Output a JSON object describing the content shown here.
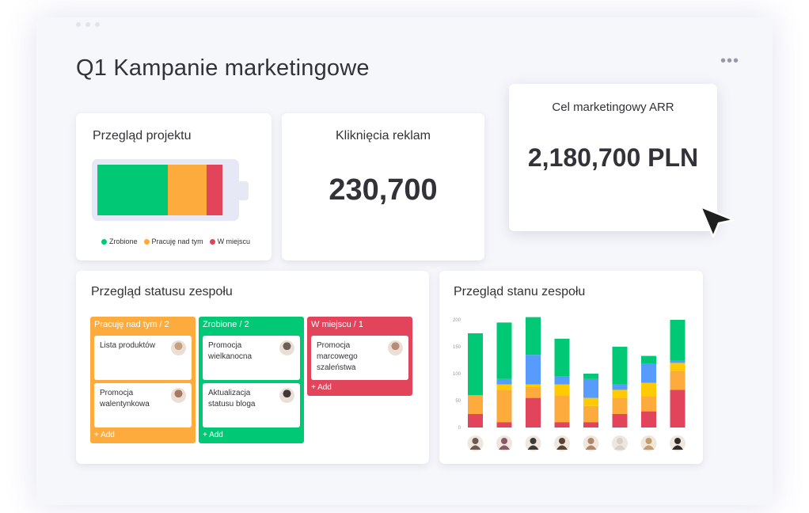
{
  "page": {
    "title": "Q1 Kampanie marketingowe",
    "more_label": "•••"
  },
  "project_overview": {
    "title": "Przegląd projektu",
    "segments": [
      {
        "label": "Zrobione",
        "share": 0.52,
        "color": "#00c875"
      },
      {
        "label": "Pracuję nad tym",
        "share": 0.28,
        "color": "#fdab3d"
      },
      {
        "label": "W miejscu",
        "share": 0.12,
        "color": "#e2445c"
      }
    ]
  },
  "ad_clicks": {
    "title": "Kliknięcia reklam",
    "value": "230,700"
  },
  "arr_goal": {
    "title": "Cel marketingowy ARR",
    "value": "2,180,700 PLN"
  },
  "team_status": {
    "title": "Przegląd statusu zespołu",
    "columns": [
      {
        "header": "Pracuję nad tym / 2",
        "color": "#fdab3d",
        "add_label": "+ Add",
        "cards": [
          {
            "text": "Lista produktów",
            "avatar_color": "#c9a07c"
          },
          {
            "text": "Promocja walentynkowa",
            "avatar_color": "#a8795a"
          }
        ]
      },
      {
        "header": "Zrobione / 2",
        "color": "#00c875",
        "add_label": "+ Add",
        "cards": [
          {
            "text": "Promocja wielkanocna",
            "avatar_color": "#6d5f58"
          },
          {
            "text": "Aktualizacja statusu bloga",
            "avatar_color": "#3f3835"
          }
        ]
      },
      {
        "header": "W miejscu / 1",
        "color": "#e2445c",
        "add_label": "+ Add",
        "cards": [
          {
            "text": "Promocja marcowego szaleństwa",
            "avatar_color": "#b9897a"
          }
        ]
      }
    ]
  },
  "team_state": {
    "title": "Przegląd stanu zespołu",
    "avatar_colors": [
      "#6b5a52",
      "#8a5a6a",
      "#3e3a38",
      "#5a4234",
      "#b0866a",
      "#d8cfc8",
      "#c39d6c",
      "#2f2b2a"
    ]
  },
  "chart_data": {
    "type": "bar",
    "stacked": true,
    "y_ticks": [
      "0",
      "50",
      "100",
      "150",
      "200"
    ],
    "ylim": [
      0,
      200
    ],
    "series": [
      {
        "color": "#e2445c",
        "values": [
          25,
          10,
          55,
          10,
          10,
          25,
          30,
          70
        ]
      },
      {
        "color": "#fdab3d",
        "values": [
          35,
          60,
          20,
          50,
          30,
          30,
          28,
          35
        ]
      },
      {
        "color": "#ffcb00",
        "values": [
          0,
          10,
          5,
          20,
          15,
          15,
          25,
          15
        ]
      },
      {
        "color": "#579bfc",
        "values": [
          0,
          10,
          55,
          15,
          35,
          10,
          35,
          5
        ]
      },
      {
        "color": "#00c875",
        "values": [
          115,
          105,
          70,
          70,
          10,
          70,
          15,
          75
        ]
      }
    ]
  },
  "cursor": {
    "icon": "arrow-pointer-icon"
  }
}
